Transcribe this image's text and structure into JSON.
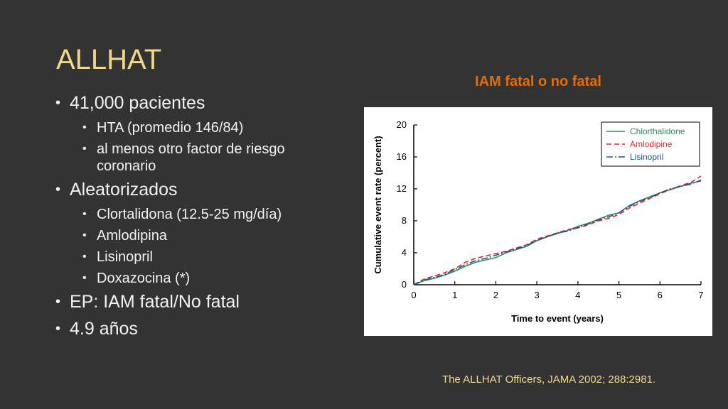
{
  "slide": {
    "title": "ALLHAT",
    "bullets": [
      {
        "text": "41,000 pacientes",
        "sub": [
          "HTA (promedio 146/84)",
          "al menos otro factor de riesgo coronario"
        ]
      },
      {
        "text": "Aleatorizados",
        "sub": [
          "Clortalidona (12.5-25 mg/día)",
          "Amlodipina",
          "Lisinopril",
          "Doxazocina (*)"
        ]
      },
      {
        "text": "EP: IAM fatal/No fatal",
        "sub": []
      },
      {
        "text": "4.9 años",
        "sub": []
      }
    ],
    "chart_heading": "IAM fatal o no fatal",
    "citation": "The ALLHAT Officers, JAMA 2002; 288:2981."
  },
  "colors": {
    "background": "#333333",
    "title": "#f0d98c",
    "body_text": "#f2f2f2",
    "heading": "#e46c0a",
    "citation": "#f0d98c",
    "chlorthalidone": "#2e8b57",
    "amlodipine": "#e8202a",
    "lisinopril": "#1f4e9e"
  },
  "chart_data": {
    "type": "line",
    "title": "",
    "xlabel": "Time to event (years)",
    "ylabel": "Cumulative event rate (percent)",
    "xlim": [
      0,
      7
    ],
    "ylim": [
      0,
      20
    ],
    "xticks": [
      0,
      1,
      2,
      3,
      4,
      5,
      6,
      7
    ],
    "yticks": [
      0,
      4,
      8,
      12,
      16,
      20
    ],
    "grid": false,
    "legend_position": "top-right",
    "series": [
      {
        "name": "Chlorthalidone",
        "style": "solid",
        "x": [
          0,
          0.25,
          0.5,
          0.75,
          1,
          1.25,
          1.5,
          1.75,
          2,
          2.25,
          2.5,
          2.75,
          3,
          3.25,
          3.5,
          3.75,
          4,
          4.25,
          4.5,
          4.75,
          5,
          5.25,
          5.5,
          5.75,
          6,
          6.25,
          6.5,
          6.75,
          7
        ],
        "y": [
          0,
          0.5,
          0.8,
          1.2,
          1.7,
          2.3,
          2.8,
          3.1,
          3.4,
          4.0,
          4.4,
          4.8,
          5.5,
          6.0,
          6.4,
          6.8,
          7.3,
          7.7,
          8.2,
          8.7,
          9.0,
          9.9,
          10.5,
          11.0,
          11.5,
          11.9,
          12.3,
          12.7,
          13.0
        ]
      },
      {
        "name": "Amlodipine",
        "style": "dashed",
        "x": [
          0,
          0.25,
          0.5,
          0.75,
          1,
          1.25,
          1.5,
          1.75,
          2,
          2.25,
          2.5,
          2.75,
          3,
          3.25,
          3.5,
          3.75,
          4,
          4.25,
          4.5,
          4.75,
          5,
          5.25,
          5.5,
          5.75,
          6,
          6.25,
          6.5,
          6.75,
          7
        ],
        "y": [
          0,
          0.7,
          1.1,
          1.5,
          2.0,
          2.8,
          3.3,
          3.6,
          3.9,
          4.2,
          4.6,
          5.0,
          5.7,
          6.1,
          6.5,
          6.9,
          7.1,
          7.5,
          8.0,
          8.3,
          8.8,
          9.6,
          10.2,
          10.8,
          11.4,
          11.9,
          12.4,
          12.8,
          13.6
        ]
      },
      {
        "name": "Lisinopril",
        "style": "dash-dot",
        "x": [
          0,
          0.25,
          0.5,
          0.75,
          1,
          1.25,
          1.5,
          1.75,
          2,
          2.25,
          2.5,
          2.75,
          3,
          3.25,
          3.5,
          3.75,
          4,
          4.25,
          4.5,
          4.75,
          5,
          5.25,
          5.5,
          5.75,
          6,
          6.25,
          6.5,
          6.75,
          7
        ],
        "y": [
          0,
          0.6,
          0.9,
          1.3,
          1.9,
          2.5,
          3.0,
          3.3,
          3.7,
          4.1,
          4.5,
          4.9,
          5.6,
          6.0,
          6.5,
          6.7,
          7.2,
          7.6,
          8.1,
          8.5,
          9.0,
          9.8,
          10.4,
          10.9,
          11.5,
          12.0,
          12.3,
          12.6,
          13.1
        ]
      }
    ]
  }
}
